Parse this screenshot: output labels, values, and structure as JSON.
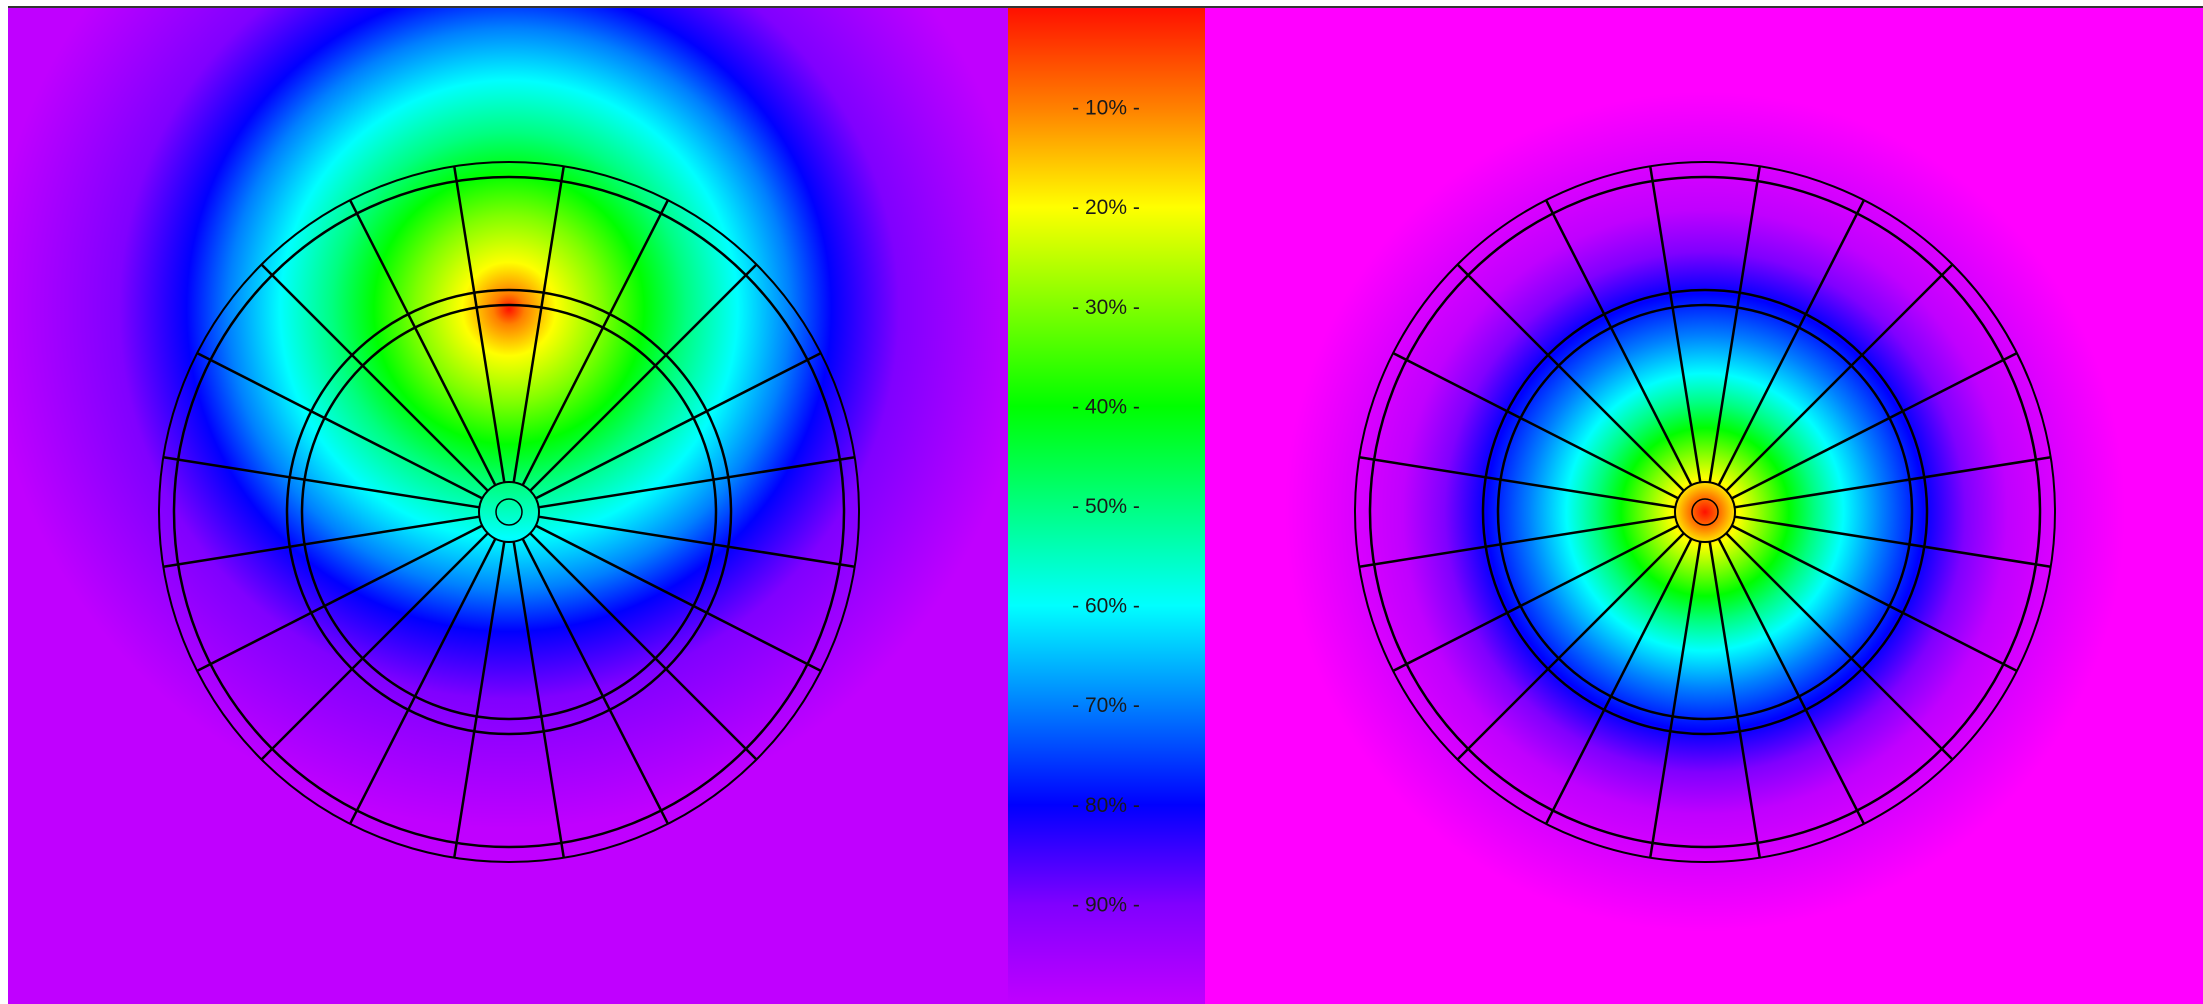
{
  "chart_data": [
    {
      "type": "heatmap",
      "panel": "left",
      "background_color": "#a000ff",
      "hotspot": {
        "angle_deg": 0,
        "radius_fraction": 0.58,
        "peak_percent": 5
      },
      "board": {
        "sectors": 20,
        "rings": [
          "outer-double",
          "inner-triple",
          "bull"
        ]
      }
    },
    {
      "type": "heatmap",
      "panel": "right",
      "background_color": "#ff00ff",
      "hotspot": {
        "angle_deg": 0,
        "radius_fraction": 0.0,
        "peak_percent": 10
      },
      "board": {
        "sectors": 20,
        "rings": [
          "outer-double",
          "inner-triple",
          "bull"
        ]
      }
    }
  ],
  "color_scale": {
    "labels": [
      "- 10% -",
      "- 20% -",
      "- 30% -",
      "- 40% -",
      "- 50% -",
      "- 60% -",
      "- 70% -",
      "- 80% -",
      "- 90% -"
    ],
    "stops": [
      {
        "percent": 0,
        "color": "#ff1000"
      },
      {
        "percent": 10,
        "color": "#ff8000"
      },
      {
        "percent": 20,
        "color": "#ffff00"
      },
      {
        "percent": 30,
        "color": "#80ff00"
      },
      {
        "percent": 40,
        "color": "#00ff00"
      },
      {
        "percent": 50,
        "color": "#00ff80"
      },
      {
        "percent": 60,
        "color": "#00ffff"
      },
      {
        "percent": 70,
        "color": "#0080ff"
      },
      {
        "percent": 80,
        "color": "#0000ff"
      },
      {
        "percent": 90,
        "color": "#8000ff"
      },
      {
        "percent": 100,
        "color": "#c000ff"
      }
    ]
  }
}
